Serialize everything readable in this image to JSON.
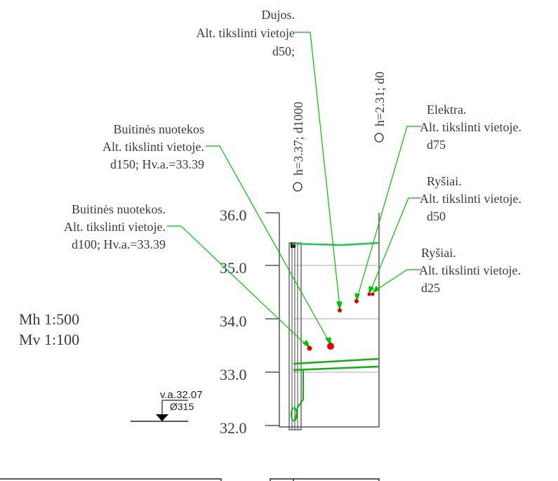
{
  "scale": {
    "horizontal": "Mh 1:500",
    "vertical": "Mv 1:100"
  },
  "elevation_axis": {
    "ticks": [
      "36.0",
      "35.0",
      "34.0",
      "33.0",
      "32.0"
    ],
    "range": [
      32.0,
      36.0
    ]
  },
  "water_level": {
    "label": "v.a.32.07",
    "diameter": "Ø315"
  },
  "boreholes": [
    {
      "label": "h=3.37; d1000"
    },
    {
      "label": "h=2.31; d0"
    }
  ],
  "callouts": {
    "gas": [
      "Dujos.",
      "Alt. tikslinti vietoje",
      "d50;"
    ],
    "sewer_150": [
      "Buitinės nuotekos",
      "Alt. tikslinti vietoje.",
      "d150; Hv.a.=33.39"
    ],
    "sewer_100": [
      "Buitinės nuotekos.",
      "Alt. tikslinti vietoje.",
      "d100; Hv.a.=33.39"
    ],
    "electric": [
      "Elektra.",
      "Alt. tikslinti vietoje.",
      "d75"
    ],
    "comm_50": [
      "Ryšiai.",
      "Alt. tikslinti vietoje.",
      "d50"
    ],
    "comm_25": [
      "Ryšiai.",
      "Alt. tikslinti vietoje.",
      "d25"
    ]
  },
  "colors": {
    "line_green": "#00c000",
    "ground_green": "#1ec853",
    "utility_red": "#e00000",
    "axis": "#555555",
    "grid": "#c8c8c8"
  }
}
